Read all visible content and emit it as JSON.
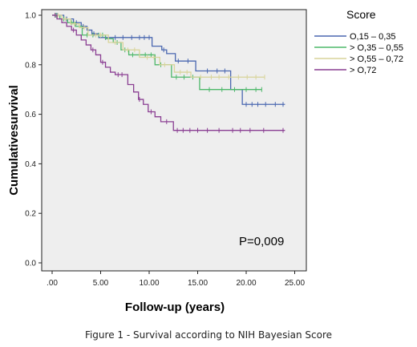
{
  "chart_data": {
    "type": "line",
    "title": "",
    "xlabel": "Follow-up (years)",
    "ylabel": "Cumulativesurvival",
    "xlim": [
      0,
      25
    ],
    "ylim": [
      0,
      1.0
    ],
    "xticks": [
      0,
      5,
      10,
      15,
      20,
      25
    ],
    "xtick_labels": [
      ".00",
      "5.00",
      "10.00",
      "15.00",
      "20.00",
      "25.00"
    ],
    "yticks": [
      0,
      0.2,
      0.4,
      0.6,
      0.8,
      1.0
    ],
    "ytick_labels": [
      "0.0",
      "0.2",
      "0.4",
      "0.6",
      "0.8",
      "1.0"
    ],
    "grid": false,
    "plot_background": "#eeeeee",
    "legend_title": "Score",
    "legend_position": "right",
    "annotation": "P=0,009",
    "series": [
      {
        "name": "O,15 – 0,35",
        "color": "#4a67b0",
        "steps": [
          [
            0,
            1.0
          ],
          [
            1.2,
            0.985
          ],
          [
            2.2,
            0.97
          ],
          [
            3.0,
            0.955
          ],
          [
            3.6,
            0.94
          ],
          [
            4.1,
            0.925
          ],
          [
            4.8,
            0.91
          ],
          [
            10.3,
            0.875
          ],
          [
            11.3,
            0.86
          ],
          [
            11.8,
            0.845
          ],
          [
            12.7,
            0.815
          ],
          [
            14.8,
            0.775
          ],
          [
            18.4,
            0.7
          ],
          [
            19.6,
            0.64
          ],
          [
            24.0,
            0.64
          ]
        ],
        "censored": [
          0.5,
          1.5,
          2.5,
          3.2,
          4.3,
          5.5,
          6.5,
          7.3,
          8.2,
          9.0,
          9.5,
          10.0,
          11.5,
          13.0,
          14.0,
          16.0,
          17.0,
          17.8,
          20.0,
          20.6,
          21.2,
          22.0,
          23.0,
          23.8
        ]
      },
      {
        "name": "> O,35 – 0,55",
        "color": "#4db86a",
        "steps": [
          [
            0,
            1.0
          ],
          [
            0.8,
            0.985
          ],
          [
            1.6,
            0.97
          ],
          [
            2.4,
            0.955
          ],
          [
            3.1,
            0.92
          ],
          [
            5.5,
            0.905
          ],
          [
            6.3,
            0.89
          ],
          [
            7.1,
            0.86
          ],
          [
            7.9,
            0.84
          ],
          [
            10.6,
            0.8
          ],
          [
            12.3,
            0.75
          ],
          [
            15.2,
            0.7
          ],
          [
            21.6,
            0.7
          ]
        ],
        "censored": [
          0.4,
          1.2,
          2.0,
          3.6,
          4.2,
          4.8,
          5.2,
          6.7,
          7.5,
          8.3,
          9.0,
          9.6,
          10.2,
          11.2,
          12.8,
          13.6,
          14.5,
          16.2,
          17.5,
          18.8,
          20.0,
          21.0,
          21.6
        ]
      },
      {
        "name": "> O,55 – 0,72",
        "color": "#d8d49a",
        "steps": [
          [
            0,
            1.0
          ],
          [
            1.0,
            0.985
          ],
          [
            1.9,
            0.965
          ],
          [
            2.8,
            0.95
          ],
          [
            3.7,
            0.92
          ],
          [
            5.8,
            0.89
          ],
          [
            7.3,
            0.86
          ],
          [
            9.0,
            0.83
          ],
          [
            11.1,
            0.8
          ],
          [
            12.6,
            0.77
          ],
          [
            14.3,
            0.75
          ],
          [
            21.9,
            0.75
          ]
        ],
        "censored": [
          0.6,
          1.4,
          2.3,
          3.3,
          4.5,
          5.0,
          6.5,
          7.8,
          8.5,
          9.8,
          10.5,
          11.6,
          13.2,
          13.9,
          15.3,
          16.4,
          17.2,
          18.2,
          19.2,
          20.1,
          21.0,
          21.9
        ]
      },
      {
        "name": "> O,72",
        "color": "#8a3e92",
        "steps": [
          [
            0,
            1.0
          ],
          [
            0.5,
            0.985
          ],
          [
            1.0,
            0.97
          ],
          [
            1.5,
            0.955
          ],
          [
            2.0,
            0.94
          ],
          [
            2.5,
            0.92
          ],
          [
            3.0,
            0.9
          ],
          [
            3.5,
            0.88
          ],
          [
            4.0,
            0.86
          ],
          [
            4.5,
            0.84
          ],
          [
            5.0,
            0.81
          ],
          [
            5.5,
            0.79
          ],
          [
            6.0,
            0.77
          ],
          [
            6.5,
            0.76
          ],
          [
            7.8,
            0.72
          ],
          [
            8.4,
            0.69
          ],
          [
            8.9,
            0.66
          ],
          [
            9.4,
            0.64
          ],
          [
            9.9,
            0.61
          ],
          [
            10.6,
            0.59
          ],
          [
            11.2,
            0.57
          ],
          [
            12.5,
            0.535
          ],
          [
            24.0,
            0.535
          ]
        ],
        "censored": [
          0.3,
          2.2,
          4.2,
          5.2,
          6.8,
          7.2,
          9.0,
          10.2,
          11.8,
          12.9,
          13.5,
          14.2,
          15.0,
          16.0,
          17.2,
          18.6,
          19.4,
          20.4,
          21.8,
          23.8
        ]
      }
    ]
  },
  "caption": "Figure 1 - Survival according to NIH Bayesian Score"
}
